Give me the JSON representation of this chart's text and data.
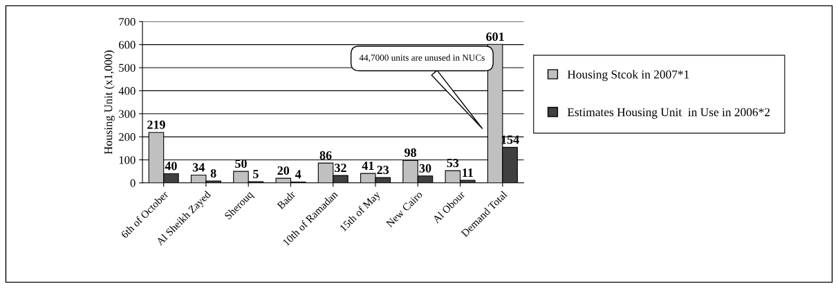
{
  "chart_data": {
    "type": "bar",
    "ylabel": "Housing Unit (x1,000)",
    "categories": [
      "6th of October",
      "Al Sheikh Zayed",
      "Sherouq",
      "Badr",
      "10th of Ramadan",
      "15th of May",
      "New Cairo",
      "Al Obour",
      "Demand Total"
    ],
    "series": [
      {
        "name": "Housing Stcok in 2007*1",
        "color": "#c0c0c0",
        "values": [
          219,
          34,
          50,
          20,
          86,
          41,
          98,
          53,
          601
        ]
      },
      {
        "name": "Estimates Housing Unit  in Use in 2006*2",
        "color": "#404040",
        "values": [
          40,
          8,
          5,
          4,
          32,
          23,
          30,
          11,
          154
        ]
      }
    ],
    "ylim": [
      0,
      700
    ],
    "yticks": [
      0,
      100,
      200,
      300,
      400,
      500,
      600,
      700
    ],
    "grid": "y",
    "legend": "right",
    "data_labels": true,
    "annotations": [
      "44,7000 units are unused in NUCs"
    ]
  }
}
